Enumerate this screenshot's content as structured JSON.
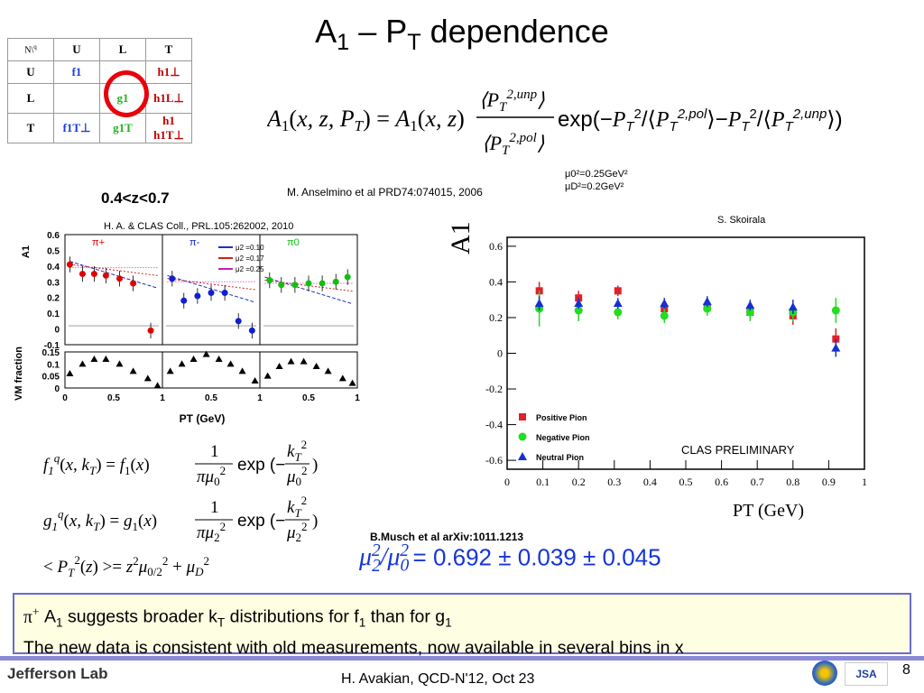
{
  "slide": {
    "title_parts": [
      "A",
      "1",
      " – P",
      "T",
      " dependence"
    ],
    "page_number": "8",
    "footer": "H. Avakian, QCD-N'12,  Oct 23",
    "logo_text": "Jefferson Lab"
  },
  "tmd_table": {
    "corner": [
      "N",
      "q"
    ],
    "columns": [
      "U",
      "L",
      "T"
    ],
    "rows": [
      {
        "label": "U",
        "cells": [
          "f1",
          "",
          "h1⊥"
        ]
      },
      {
        "label": "L",
        "cells": [
          "",
          "g1",
          "h1L⊥"
        ]
      },
      {
        "label": "T",
        "cells": [
          "f1T⊥",
          "g1T",
          "h1  h1T⊥"
        ]
      }
    ]
  },
  "texts": {
    "reference1": "M. Anselmino et al PRD74:074015, 2006",
    "mu0": "μ0²=0.25GeV²",
    "muD": "μD²=0.2GeV²",
    "z_range": "0.4<z<0.7",
    "reference2": "H. A. & CLAS Coll., PRL.105:262002, 2010",
    "author": "S. Skoirala",
    "reference3": "B.Musch et al arXiv:1011.1213",
    "result": "= 0.692 ± 0.039 ± 0.045",
    "note_line1_a": " A",
    "note_line1_b": " suggests  broader k",
    "note_line1_c": " distributions for f",
    "note_line1_d": " than for g",
    "note_line2": "The new data is consistent with old measurements, now available in several bins in x"
  },
  "chart_data": [
    {
      "type": "scatter",
      "title": "",
      "xlabel": "PT (GeV)",
      "ylabel": "A1",
      "xlim": [
        0,
        1
      ],
      "ylim": [
        -0.65,
        0.65
      ],
      "xticks": [
        0,
        0.1,
        0.2,
        0.3,
        0.4,
        0.5,
        0.6,
        0.7,
        0.8,
        0.9,
        1
      ],
      "yticks": [
        -0.6,
        -0.4,
        -0.2,
        0,
        0.2,
        0.4,
        0.6
      ],
      "annotation": "CLAS PRELIMINARY",
      "legend_position": "bottom-left",
      "series": [
        {
          "name": "Positive Pion",
          "color": "#e0202a",
          "marker": "square",
          "x": [
            0.09,
            0.2,
            0.31,
            0.44,
            0.56,
            0.68,
            0.8,
            0.92
          ],
          "y": [
            0.35,
            0.31,
            0.35,
            0.25,
            0.26,
            0.23,
            0.21,
            0.08
          ],
          "err": [
            0.05,
            0.04,
            0.03,
            0.04,
            0.04,
            0.04,
            0.05,
            0.06
          ]
        },
        {
          "name": "Negative Pion",
          "color": "#22dd22",
          "marker": "circle",
          "x": [
            0.09,
            0.2,
            0.31,
            0.44,
            0.56,
            0.68,
            0.8,
            0.92
          ],
          "y": [
            0.25,
            0.24,
            0.23,
            0.21,
            0.25,
            0.23,
            0.23,
            0.24
          ],
          "err": [
            0.1,
            0.06,
            0.04,
            0.04,
            0.04,
            0.05,
            0.05,
            0.07
          ]
        },
        {
          "name": "Neutral Pion",
          "color": "#1530d0",
          "marker": "triangle",
          "x": [
            0.09,
            0.2,
            0.31,
            0.44,
            0.56,
            0.68,
            0.8,
            0.92
          ],
          "y": [
            0.28,
            0.28,
            0.28,
            0.28,
            0.29,
            0.27,
            0.26,
            0.03
          ],
          "err": [
            0.04,
            0.03,
            0.03,
            0.03,
            0.03,
            0.03,
            0.04,
            0.05
          ]
        }
      ]
    },
    {
      "type": "scatter",
      "title": "",
      "xlabel": "PT (GeV)",
      "ylabel": "A1",
      "panels": [
        "π+",
        "π-",
        "π0"
      ],
      "ylim": [
        -0.1,
        0.6
      ],
      "yticks": [
        -0.1,
        0,
        0.1,
        0.2,
        0.3,
        0.4,
        0.5,
        0.6
      ],
      "xticks": [
        0,
        0.5,
        1
      ],
      "legend": [
        "μ2 =0.10",
        "μ2 =0.17",
        "μ2 =0.25"
      ],
      "series": [
        {
          "name": "π+",
          "color": "#e00000",
          "x": [
            0.05,
            0.18,
            0.3,
            0.42,
            0.56,
            0.7,
            0.88
          ],
          "y": [
            0.41,
            0.35,
            0.35,
            0.34,
            0.32,
            0.29,
            -0.01
          ]
        },
        {
          "name": "π-",
          "color": "#1020d0",
          "x": [
            0.1,
            0.22,
            0.36,
            0.5,
            0.64,
            0.78,
            0.92
          ],
          "y": [
            0.32,
            0.18,
            0.21,
            0.23,
            0.23,
            0.05,
            -0.01
          ]
        },
        {
          "name": "π0",
          "color": "#10c010",
          "x": [
            0.1,
            0.22,
            0.36,
            0.5,
            0.64,
            0.78,
            0.9
          ],
          "y": [
            0.31,
            0.28,
            0.28,
            0.29,
            0.29,
            0.3,
            0.33
          ]
        }
      ]
    },
    {
      "type": "scatter",
      "title": "",
      "xlabel": "PT (GeV)",
      "ylabel": "VM fraction",
      "ylim": [
        0,
        0.15
      ],
      "yticks": [
        0,
        0.05,
        0.1,
        0.15
      ],
      "series": [
        {
          "name": "",
          "color": "#000000",
          "marker": "triangle",
          "x": [
            0.05,
            0.18,
            0.3,
            0.42,
            0.56,
            0.7,
            0.85,
            0.95,
            0.08,
            0.2,
            0.32,
            0.45,
            0.58,
            0.7,
            0.82,
            0.95,
            0.08,
            0.2,
            0.32,
            0.45,
            0.58,
            0.7,
            0.85,
            0.95
          ],
          "y": [
            0.06,
            0.1,
            0.12,
            0.12,
            0.1,
            0.07,
            0.04,
            0.01,
            0.07,
            0.1,
            0.12,
            0.14,
            0.12,
            0.1,
            0.07,
            0.03,
            0.05,
            0.09,
            0.11,
            0.11,
            0.09,
            0.07,
            0.04,
            0.02
          ]
        }
      ]
    }
  ]
}
